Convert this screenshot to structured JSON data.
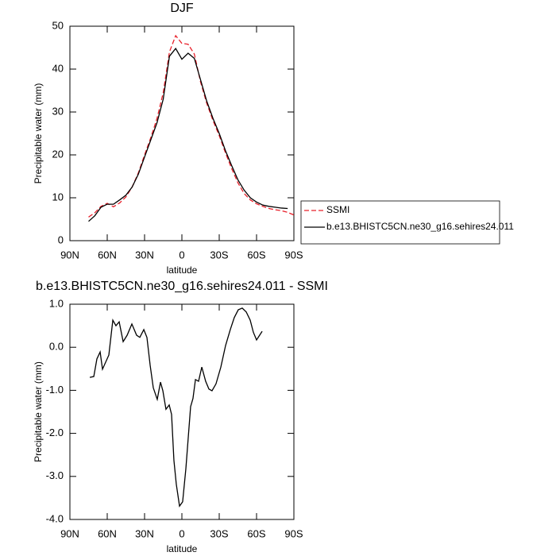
{
  "chart_data": [
    {
      "type": "line",
      "title": "DJF",
      "xlabel": "latitude",
      "ylabel": "Precipitable water (mm)",
      "x": [
        75,
        70,
        65,
        60,
        55,
        50,
        45,
        40,
        35,
        30,
        25,
        20,
        15,
        10,
        5,
        0,
        -5,
        -10,
        -15,
        -20,
        -25,
        -30,
        -35,
        -40,
        -45,
        -50,
        -55,
        -60,
        -65,
        -70,
        -75,
        -80,
        -85,
        -90
      ],
      "series": [
        {
          "name": "SSMI",
          "color": "#e8202a",
          "style": "dashed",
          "values": [
            5.5,
            6.5,
            8.0,
            8.7,
            7.9,
            8.8,
            10.2,
            12.5,
            15.8,
            20,
            24,
            28.5,
            34.5,
            44,
            47.8,
            46,
            45.8,
            43.5,
            37,
            32,
            28,
            24.5,
            20.5,
            16.8,
            13.5,
            11,
            9.5,
            8.6,
            8.0,
            7.5,
            7.2,
            7.0,
            6.6,
            6.0
          ]
        },
        {
          "name": "b.e13.BHISTC5CN.ne30_g16.sehires24.011",
          "color": "#000000",
          "style": "solid",
          "values": [
            4.5,
            5.8,
            7.8,
            8.5,
            8.5,
            9.5,
            10.6,
            12.5,
            15.5,
            19.5,
            23.5,
            27.5,
            33,
            43,
            44.8,
            42.3,
            43.7,
            42.5,
            37.5,
            32.5,
            28.5,
            25,
            21,
            17.5,
            14.2,
            11.8,
            10,
            9.0,
            8.3,
            8.0,
            7.8,
            7.6,
            7.5,
            null
          ]
        }
      ],
      "xlim": [
        90,
        -90
      ],
      "xticks": [
        {
          "value": 90,
          "label": "90N"
        },
        {
          "value": 60,
          "label": "60N"
        },
        {
          "value": 30,
          "label": "30N"
        },
        0,
        {
          "value": -30,
          "label": "30S"
        },
        {
          "value": -60,
          "label": "60S"
        },
        {
          "value": -90,
          "label": "90S"
        }
      ],
      "ylim": [
        0,
        50
      ],
      "yticks": [
        0,
        10,
        20,
        30,
        40,
        50
      ]
    },
    {
      "type": "line",
      "title": "b.e13.BHISTC5CN.ne30_g16.sehires24.011 - SSMI",
      "xlabel": "latitude",
      "ylabel": "Precipitable water (mm)",
      "x": [
        74,
        70.8,
        68.3,
        65.7,
        63.8,
        58.7,
        55.5,
        53,
        50.4,
        47.2,
        44,
        40.2,
        36.4,
        33.8,
        30.6,
        28.1,
        25.5,
        23,
        19.8,
        17.2,
        15.3,
        12.8,
        10.2,
        8.3,
        6.4,
        4.5,
        1.9,
        -0.6,
        -3.2,
        -7,
        -8.9,
        -10.9,
        -13.4,
        -16,
        -19.1,
        -21.7,
        -24.2,
        -27.4,
        -31.3,
        -35.1,
        -38.9,
        -42.1,
        -45.3,
        -48.5,
        -51.7,
        -54.9,
        -57.4,
        -60,
        -64.5
      ],
      "values": [
        -0.7,
        -0.68,
        -0.27,
        -0.11,
        -0.51,
        -0.18,
        0.63,
        0.5,
        0.59,
        0.13,
        0.28,
        0.54,
        0.28,
        0.23,
        0.41,
        0.23,
        -0.42,
        -0.94,
        -1.21,
        -0.81,
        -1.01,
        -1.44,
        -1.34,
        -1.56,
        -2.63,
        -3.18,
        -3.69,
        -3.59,
        -2.82,
        -1.38,
        -1.19,
        -0.75,
        -0.79,
        -0.46,
        -0.79,
        -0.97,
        -1.01,
        -0.85,
        -0.46,
        0.04,
        0.41,
        0.69,
        0.87,
        0.91,
        0.82,
        0.63,
        0.35,
        0.17,
        0.37
      ],
      "color": "#000000",
      "xlim": [
        90,
        -90
      ],
      "xticks": [
        {
          "value": 90,
          "label": "90N"
        },
        {
          "value": 60,
          "label": "60N"
        },
        {
          "value": 30,
          "label": "30N"
        },
        0,
        {
          "value": -30,
          "label": "30S"
        },
        {
          "value": -60,
          "label": "60S"
        },
        {
          "value": -90,
          "label": "90S"
        }
      ],
      "ylim": [
        -4,
        1
      ],
      "yticks": [
        {
          "value": -4,
          "label": "-4.0"
        },
        {
          "value": -3,
          "label": "-3.0"
        },
        {
          "value": -2,
          "label": "-2.0"
        },
        {
          "value": -1,
          "label": "-1.0"
        },
        {
          "value": 0,
          "label": "0.0"
        },
        {
          "value": 1,
          "label": "1.0"
        }
      ]
    }
  ]
}
